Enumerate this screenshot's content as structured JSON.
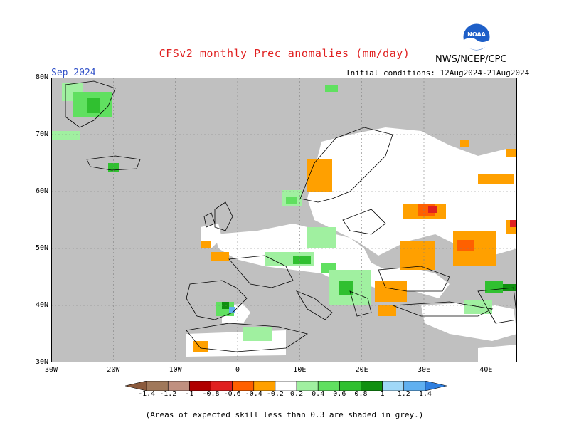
{
  "header": {
    "title": "CFSv2 monthly Prec anomalies (mm/day)",
    "agency": "NWS/NCEP/CPC",
    "logo_text": "NOAA",
    "period": "Sep 2024",
    "initial_conditions": "Initial conditions: 12Aug2024-21Aug2024"
  },
  "map": {
    "lat_labels": [
      "80N",
      "70N",
      "60N",
      "50N",
      "40N",
      "30N"
    ],
    "lon_labels": [
      "30W",
      "20W",
      "10W",
      "0",
      "10E",
      "20E",
      "30E",
      "40E"
    ],
    "lon_range": [
      -30,
      45
    ],
    "lat_range": [
      30,
      80
    ],
    "skill_mask_color": "#c0c0c0",
    "ocean_color": "#c0c0c0",
    "land_color": "#ffffff"
  },
  "colorbar": {
    "labels": [
      "-1.4",
      "-1.2",
      "-1",
      "-0.8",
      "-0.6",
      "-0.4",
      "-0.2",
      "0.2",
      "0.4",
      "0.6",
      "0.8",
      "1",
      "1.2",
      "1.4"
    ],
    "colors": [
      "#8b5a3c",
      "#a0785a",
      "#c09080",
      "#b00000",
      "#e02020",
      "#ff6000",
      "#ffa000",
      "#ffffff",
      "#a0f0a0",
      "#60e060",
      "#30c030",
      "#109010",
      "#a0d8f8",
      "#60b0f0",
      "#3080e0"
    ]
  },
  "footnote": "(Areas of expected skill less than 0.3 are shaded in grey.)"
}
